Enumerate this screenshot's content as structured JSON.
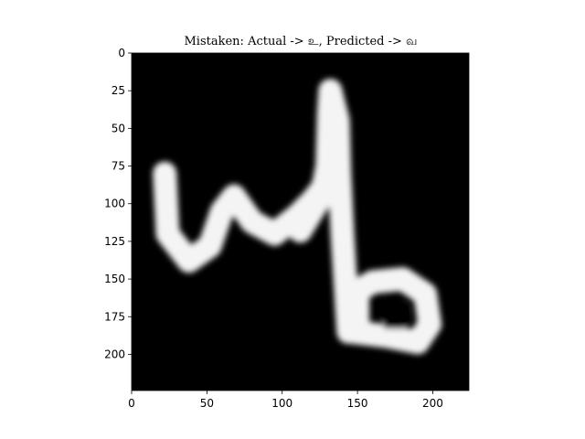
{
  "chart_data": {
    "type": "image",
    "title": "Mistaken: Actual -> உ, Predicted -> வ",
    "xlim": [
      0,
      224
    ],
    "ylim": [
      224,
      0
    ],
    "xticks": [
      0,
      50,
      100,
      150,
      200
    ],
    "yticks": [
      0,
      25,
      50,
      75,
      100,
      125,
      150,
      175,
      200
    ],
    "xtick_labels": [
      "0",
      "50",
      "100",
      "150",
      "200"
    ],
    "ytick_labels": [
      "0",
      "25",
      "50",
      "75",
      "100",
      "125",
      "150",
      "175",
      "200"
    ],
    "colormap": "gray",
    "background_color": "#000000",
    "stroke_color": "#f4f4f4",
    "strokes": [
      {
        "name": "left-loop",
        "points": [
          [
            22,
            80
          ],
          [
            24,
            120
          ],
          [
            38,
            138
          ],
          [
            52,
            128
          ],
          [
            60,
            105
          ],
          [
            68,
            95
          ],
          [
            80,
            112
          ],
          [
            95,
            120
          ],
          [
            110,
            108
          ],
          [
            120,
            98
          ],
          [
            128,
            88
          ]
        ]
      },
      {
        "name": "tall-stem",
        "points": [
          [
            112,
            118
          ],
          [
            126,
            95
          ],
          [
            130,
            75
          ],
          [
            131,
            40
          ],
          [
            132,
            25
          ],
          [
            137,
            45
          ],
          [
            138,
            80
          ],
          [
            140,
            120
          ],
          [
            143,
            170
          ],
          [
            144,
            185
          ]
        ]
      },
      {
        "name": "bottom-loop",
        "points": [
          [
            146,
            185
          ],
          [
            170,
            188
          ],
          [
            190,
            192
          ],
          [
            198,
            180
          ],
          [
            195,
            160
          ],
          [
            180,
            150
          ],
          [
            160,
            152
          ],
          [
            150,
            158
          ],
          [
            150,
            182
          ]
        ]
      }
    ],
    "hole": {
      "cx": 175,
      "cy": 175,
      "w": 16,
      "h": 16
    }
  }
}
